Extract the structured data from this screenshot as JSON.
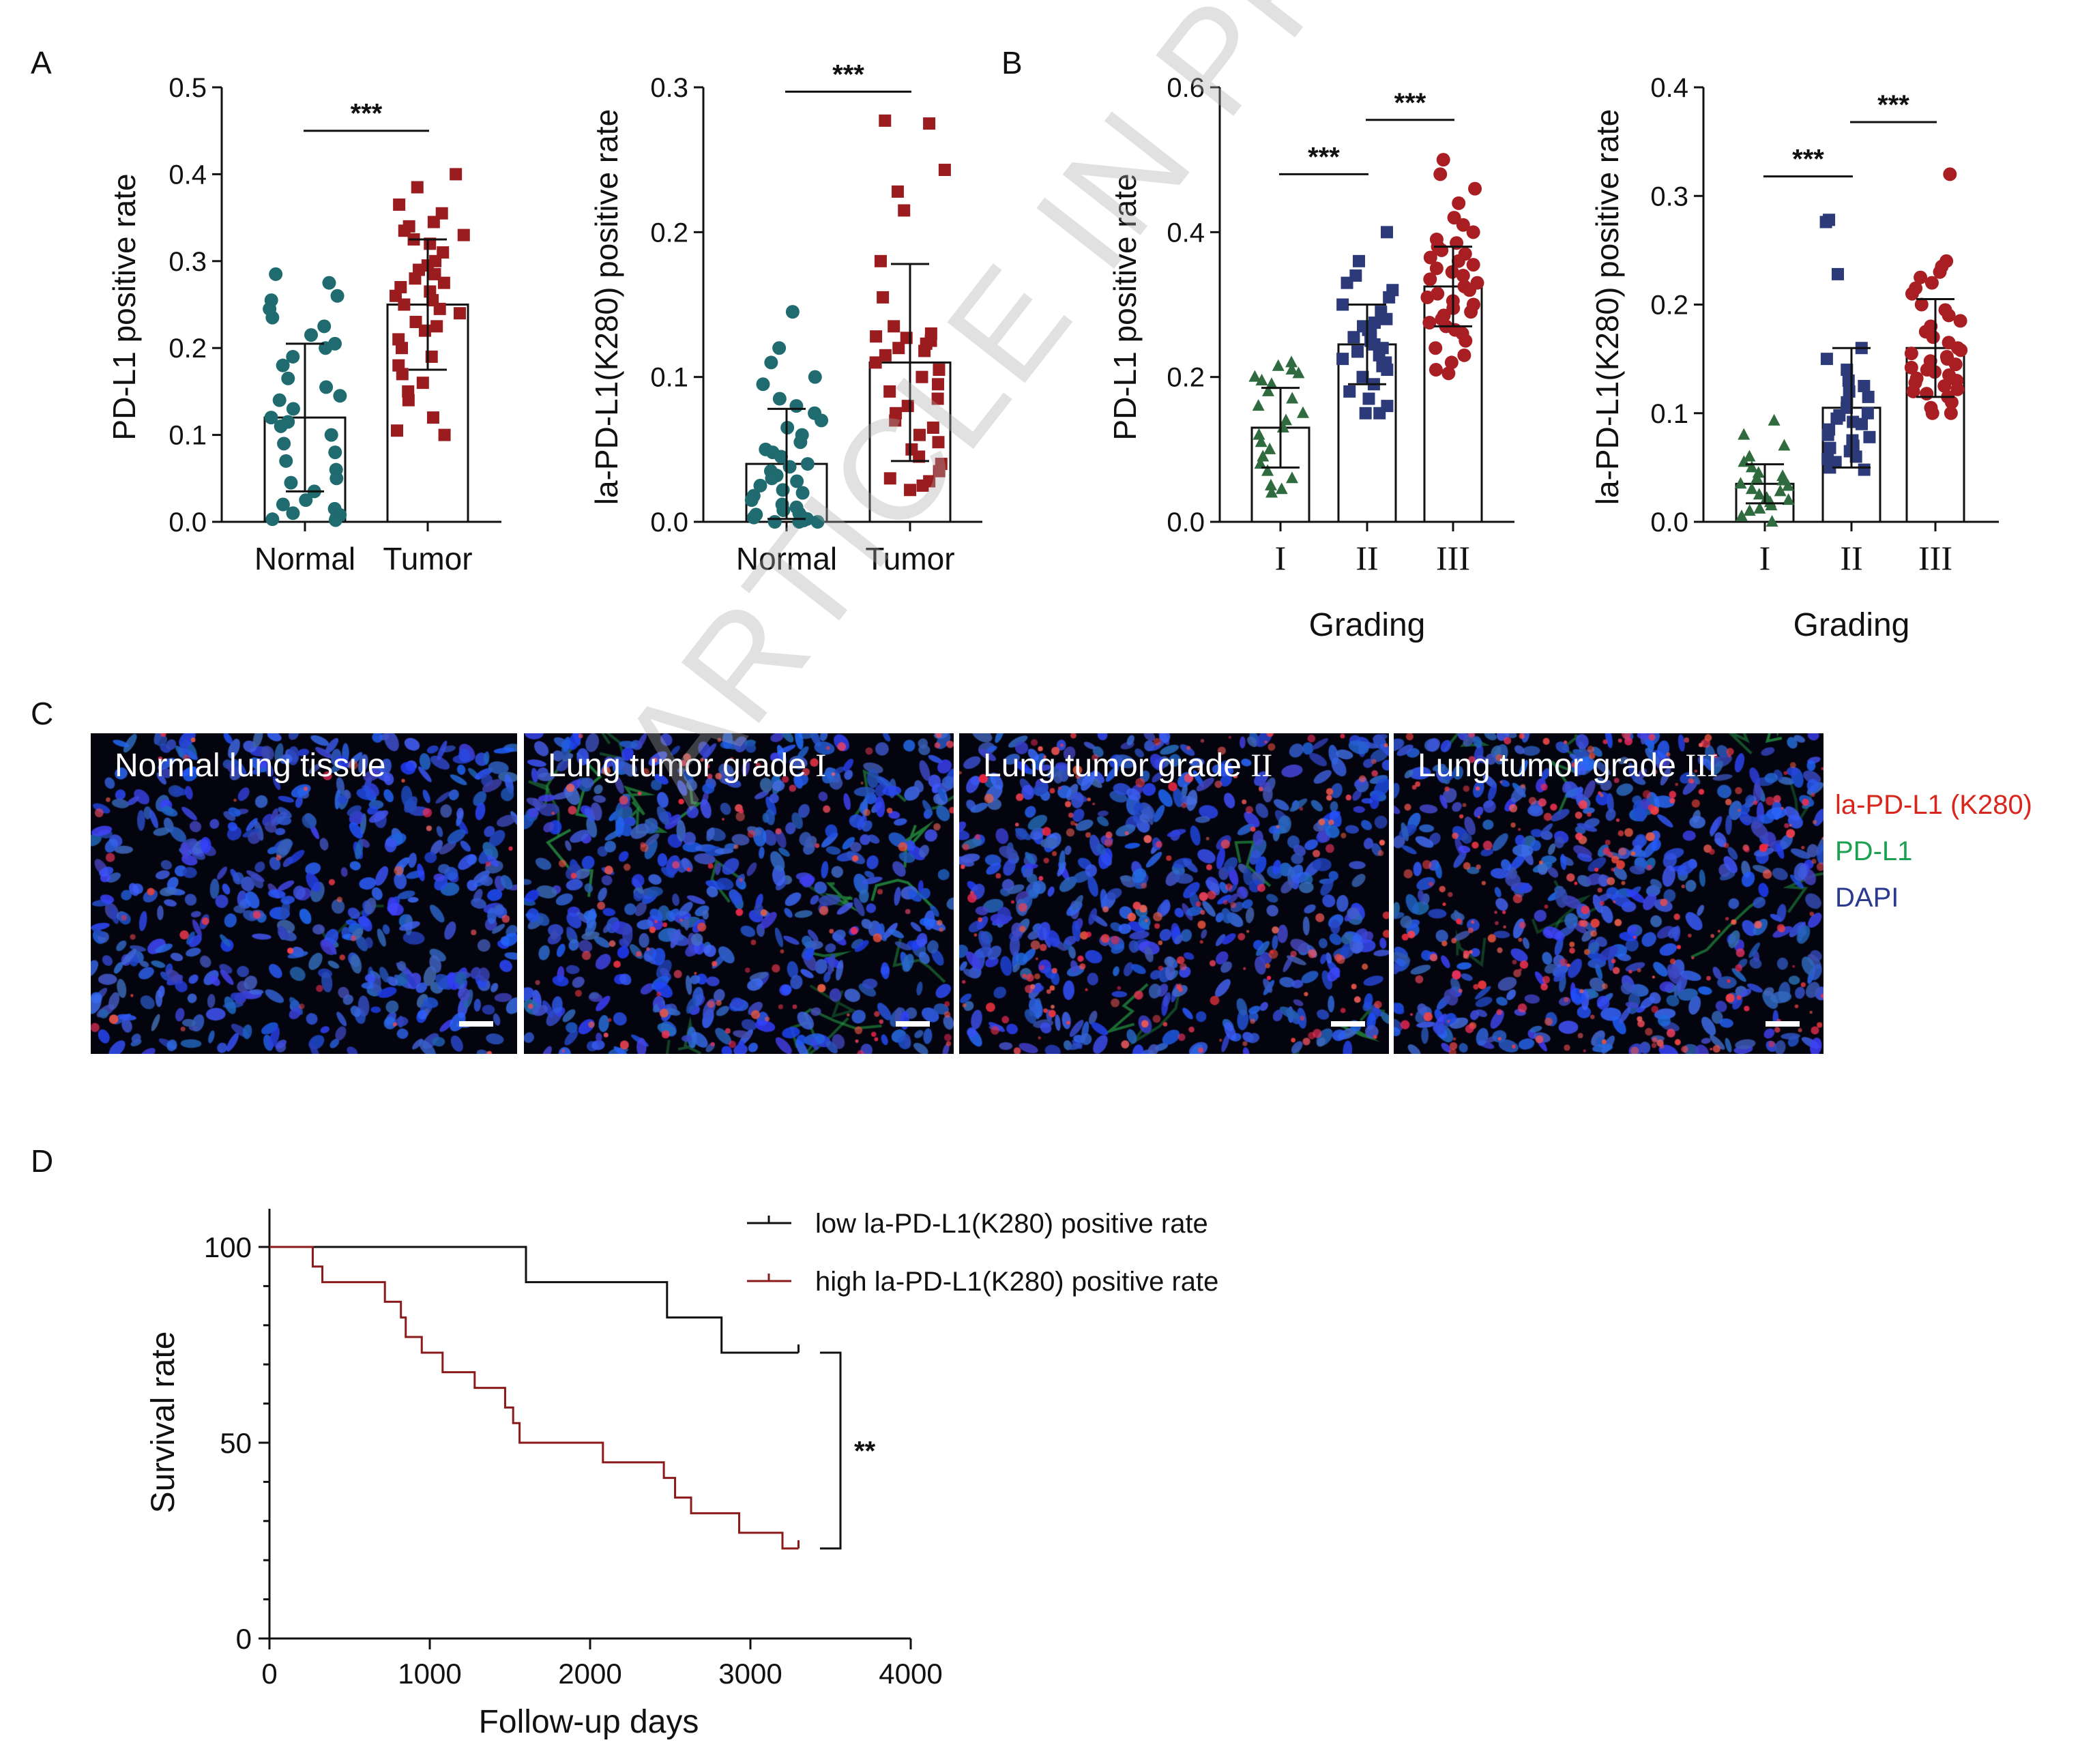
{
  "panel_letters": {
    "a": "A",
    "b": "B",
    "c": "C",
    "d": "D"
  },
  "colors": {
    "normal_teal": "#1f6b6f",
    "tumor_red": "#9b1c1f",
    "grade1_green": "#2f6b3f",
    "grade2_navy": "#2c3a7a",
    "grade3_red": "#a81e22",
    "low_line": "#111111",
    "high_line": "#8b1a1a",
    "legend_red": "#d9261c",
    "legend_green": "#1aa050",
    "legend_blue": "#2b3990"
  },
  "chart_data": [
    {
      "id": "A1",
      "type": "bar",
      "error_bars": "mean ± SD",
      "points": "scatter",
      "title": "",
      "xlabel": "",
      "ylabel": "PD-L1 positive rate",
      "ylim": [
        0,
        0.5
      ],
      "yticks": [
        "0.0",
        "0.1",
        "0.2",
        "0.3",
        "0.4",
        "0.5"
      ],
      "categories": [
        "Normal",
        "Tumor"
      ],
      "values": [
        0.12,
        0.25
      ],
      "sd": [
        0.085,
        0.075
      ],
      "point_shapes": [
        "circle",
        "square"
      ],
      "point_values": [
        [
          0.285,
          0.275,
          0.26,
          0.255,
          0.245,
          0.235,
          0.225,
          0.215,
          0.205,
          0.2,
          0.19,
          0.18,
          0.165,
          0.155,
          0.145,
          0.14,
          0.13,
          0.12,
          0.115,
          0.11,
          0.1,
          0.09,
          0.08,
          0.07,
          0.06,
          0.05,
          0.045,
          0.035,
          0.025,
          0.02,
          0.015,
          0.01,
          0.008,
          0.006,
          0.004,
          0.003,
          0.002
        ],
        [
          0.4,
          0.385,
          0.365,
          0.355,
          0.345,
          0.34,
          0.335,
          0.33,
          0.325,
          0.32,
          0.31,
          0.3,
          0.295,
          0.29,
          0.285,
          0.28,
          0.275,
          0.27,
          0.265,
          0.26,
          0.255,
          0.25,
          0.245,
          0.24,
          0.23,
          0.225,
          0.22,
          0.21,
          0.2,
          0.19,
          0.18,
          0.17,
          0.16,
          0.15,
          0.14,
          0.12,
          0.105,
          0.1
        ]
      ],
      "significance": [
        {
          "pair": [
            0,
            1
          ],
          "label": "***",
          "y": 0.45
        }
      ]
    },
    {
      "id": "A2",
      "type": "bar",
      "error_bars": "mean ± SD",
      "points": "scatter",
      "title": "",
      "xlabel": "",
      "ylabel": "la-PD-L1(K280) positive rate",
      "ylim": [
        0,
        0.3
      ],
      "yticks": [
        "0.0",
        "0.1",
        "0.2",
        "0.3"
      ],
      "categories": [
        "Normal",
        "Tumor"
      ],
      "values": [
        0.04,
        0.11
      ],
      "sd": [
        0.038,
        0.068
      ],
      "point_shapes": [
        "circle",
        "square"
      ],
      "point_values": [
        [
          0.145,
          0.12,
          0.11,
          0.1,
          0.095,
          0.085,
          0.08,
          0.075,
          0.07,
          0.065,
          0.06,
          0.055,
          0.05,
          0.048,
          0.045,
          0.04,
          0.038,
          0.035,
          0.032,
          0.03,
          0.028,
          0.025,
          0.022,
          0.02,
          0.018,
          0.015,
          0.012,
          0.01,
          0.008,
          0.006,
          0.005,
          0.004,
          0.003,
          0.002,
          0.001,
          0.0,
          0.0,
          0.0
        ],
        [
          0.277,
          0.275,
          0.243,
          0.228,
          0.215,
          0.18,
          0.155,
          0.135,
          0.13,
          0.128,
          0.127,
          0.125,
          0.123,
          0.12,
          0.118,
          0.115,
          0.11,
          0.105,
          0.1,
          0.095,
          0.09,
          0.085,
          0.08,
          0.075,
          0.07,
          0.065,
          0.06,
          0.055,
          0.05,
          0.045,
          0.04,
          0.035,
          0.03,
          0.028,
          0.025,
          0.022
        ]
      ],
      "significance": [
        {
          "pair": [
            0,
            1
          ],
          "label": "***",
          "y": 0.297
        }
      ]
    },
    {
      "id": "B1",
      "type": "bar",
      "error_bars": "mean ± SD",
      "points": "scatter",
      "title": "",
      "xlabel": "Grading",
      "ylabel": "PD-L1 positive rate",
      "ylim": [
        0,
        0.6
      ],
      "yticks": [
        "0.0",
        "0.2",
        "0.4",
        "0.6"
      ],
      "categories": [
        "I",
        "II",
        "III"
      ],
      "values": [
        0.13,
        0.245,
        0.325
      ],
      "sd": [
        0.055,
        0.055,
        0.055
      ],
      "point_shapes": [
        "triangle",
        "square",
        "circle"
      ],
      "point_values": [
        [
          0.22,
          0.215,
          0.21,
          0.205,
          0.2,
          0.195,
          0.19,
          0.18,
          0.17,
          0.16,
          0.15,
          0.14,
          0.13,
          0.12,
          0.11,
          0.1,
          0.09,
          0.08,
          0.07,
          0.06,
          0.05,
          0.045,
          0.04
        ],
        [
          0.4,
          0.36,
          0.34,
          0.33,
          0.32,
          0.31,
          0.3,
          0.29,
          0.28,
          0.275,
          0.27,
          0.265,
          0.26,
          0.255,
          0.25,
          0.245,
          0.24,
          0.235,
          0.23,
          0.225,
          0.22,
          0.215,
          0.21,
          0.2,
          0.19,
          0.18,
          0.17,
          0.16,
          0.15,
          0.15
        ],
        [
          0.5,
          0.48,
          0.46,
          0.44,
          0.42,
          0.41,
          0.4,
          0.39,
          0.385,
          0.38,
          0.375,
          0.37,
          0.365,
          0.36,
          0.355,
          0.35,
          0.345,
          0.34,
          0.335,
          0.33,
          0.325,
          0.32,
          0.315,
          0.31,
          0.305,
          0.3,
          0.295,
          0.29,
          0.285,
          0.28,
          0.275,
          0.27,
          0.265,
          0.26,
          0.25,
          0.24,
          0.23,
          0.22,
          0.21,
          0.205
        ]
      ],
      "significance": [
        {
          "pair": [
            0,
            1
          ],
          "label": "***",
          "y": 0.48
        },
        {
          "pair": [
            1,
            2
          ],
          "label": "***",
          "y": 0.555
        }
      ]
    },
    {
      "id": "B2",
      "type": "bar",
      "error_bars": "mean ± SD",
      "points": "scatter",
      "title": "",
      "xlabel": "Grading",
      "ylabel": "la-PD-L1(K280) positive rate",
      "ylim": [
        0,
        0.4
      ],
      "yticks": [
        "0.0",
        "0.1",
        "0.2",
        "0.3",
        "0.4"
      ],
      "categories": [
        "I",
        "II",
        "III"
      ],
      "values": [
        0.035,
        0.105,
        0.16
      ],
      "sd": [
        0.018,
        0.055,
        0.045
      ],
      "point_shapes": [
        "triangle",
        "square",
        "circle"
      ],
      "point_values": [
        [
          0.093,
          0.08,
          0.07,
          0.06,
          0.055,
          0.05,
          0.045,
          0.042,
          0.04,
          0.038,
          0.035,
          0.033,
          0.03,
          0.028,
          0.025,
          0.022,
          0.02,
          0.018,
          0.015,
          0.012,
          0.01,
          0.005,
          0.0
        ],
        [
          0.278,
          0.276,
          0.228,
          0.16,
          0.15,
          0.14,
          0.13,
          0.125,
          0.12,
          0.115,
          0.11,
          0.105,
          0.1,
          0.098,
          0.095,
          0.092,
          0.09,
          0.085,
          0.08,
          0.078,
          0.075,
          0.07,
          0.068,
          0.065,
          0.06,
          0.058,
          0.055,
          0.05,
          0.048
        ],
        [
          0.32,
          0.24,
          0.235,
          0.23,
          0.225,
          0.22,
          0.215,
          0.21,
          0.2,
          0.195,
          0.19,
          0.185,
          0.18,
          0.175,
          0.17,
          0.165,
          0.16,
          0.158,
          0.155,
          0.152,
          0.15,
          0.148,
          0.145,
          0.142,
          0.14,
          0.138,
          0.135,
          0.132,
          0.13,
          0.128,
          0.125,
          0.122,
          0.12,
          0.118,
          0.115,
          0.11,
          0.105,
          0.1,
          0.1
        ]
      ],
      "significance": [
        {
          "pair": [
            0,
            1
          ],
          "label": "***",
          "y": 0.318
        },
        {
          "pair": [
            1,
            2
          ],
          "label": "***",
          "y": 0.368
        }
      ]
    },
    {
      "id": "D",
      "type": "line",
      "subtype": "kaplan-meier step",
      "title": "",
      "xlabel": "Follow-up days",
      "ylabel": "Survival rate",
      "xlim": [
        0,
        4000
      ],
      "ylim": [
        0,
        100
      ],
      "xticks": [
        "0",
        "1000",
        "2000",
        "3000",
        "4000"
      ],
      "yticks": [
        "0",
        "50",
        "100"
      ],
      "series": [
        {
          "name": "low la-PD-L1(K280) positive rate",
          "x": [
            0,
            1600,
            2480,
            2820,
            3300
          ],
          "y": [
            100,
            91,
            82,
            73,
            73
          ]
        },
        {
          "name": "high la-PD-L1(K280) positive rate",
          "x": [
            0,
            270,
            330,
            720,
            820,
            850,
            950,
            1080,
            1280,
            1470,
            1520,
            1560,
            2080,
            2460,
            2530,
            2630,
            2930,
            3200,
            3300
          ],
          "y": [
            100,
            95,
            91,
            86,
            82,
            77,
            73,
            68,
            64,
            59,
            55,
            50,
            45,
            41,
            36,
            32,
            27,
            23,
            23
          ]
        }
      ],
      "significance": {
        "label": "**"
      }
    }
  ],
  "micrographs": {
    "panels": [
      {
        "label_prefix": "Normal lung tissue",
        "label_roman": ""
      },
      {
        "label_prefix": "Lung tumor grade ",
        "label_roman": "I"
      },
      {
        "label_prefix": "Lung tumor grade ",
        "label_roman": "II"
      },
      {
        "label_prefix": "Lung tumor grade ",
        "label_roman": "III"
      }
    ],
    "legend": [
      "la-PD-L1 (K280)",
      "PD-L1",
      "DAPI"
    ],
    "red_intensity": [
      0.15,
      0.45,
      0.7,
      0.95
    ],
    "green_intensity": [
      0.02,
      0.6,
      0.15,
      0.3
    ]
  },
  "watermark": "ARTICLE IN PRESS"
}
